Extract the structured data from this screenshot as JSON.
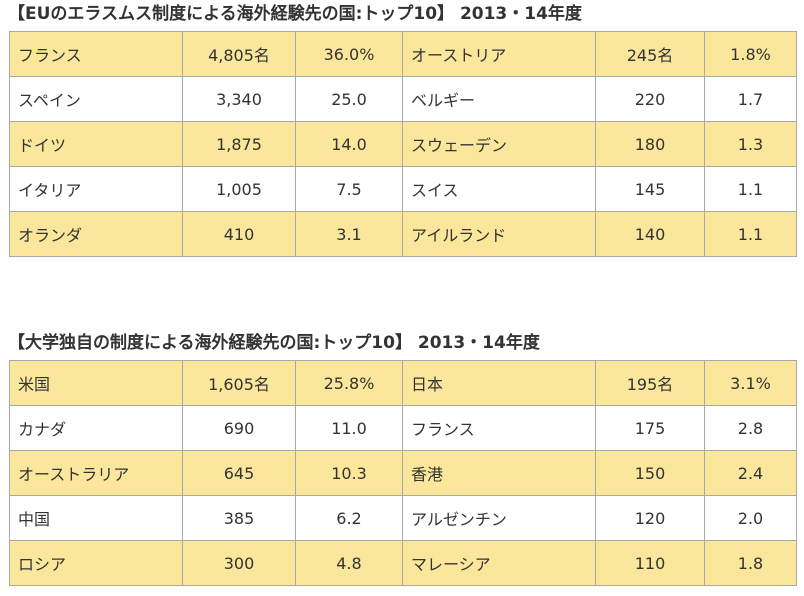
{
  "sections": [
    {
      "title": "【EUのエラスムス制度による海外経験先の国:トップ10】 2013・14年度",
      "rows": [
        {
          "left_country": "フランス",
          "left_count": "4,805名",
          "left_pct": "36.0%",
          "right_country": "オーストリア",
          "right_count": "245名",
          "right_pct": "1.8%"
        },
        {
          "left_country": "スペイン",
          "left_count": "3,340",
          "left_pct": "25.0",
          "right_country": "ベルギー",
          "right_count": "220",
          "right_pct": "1.7"
        },
        {
          "left_country": "ドイツ",
          "left_count": "1,875",
          "left_pct": "14.0",
          "right_country": "スウェーデン",
          "right_count": "180",
          "right_pct": "1.3"
        },
        {
          "left_country": "イタリア",
          "left_count": "1,005",
          "left_pct": "7.5",
          "right_country": "スイス",
          "right_count": "145",
          "right_pct": "1.1"
        },
        {
          "left_country": "オランダ",
          "left_count": "410",
          "left_pct": "3.1",
          "right_country": "アイルランド",
          "right_count": "140",
          "right_pct": "1.1"
        }
      ]
    },
    {
      "title": "【大学独自の制度による海外経験先の国:トップ10】 2013・14年度",
      "rows": [
        {
          "left_country": "米国",
          "left_count": "1,605名",
          "left_pct": "25.8%",
          "right_country": "日本",
          "right_count": "195名",
          "right_pct": "3.1%"
        },
        {
          "left_country": "カナダ",
          "left_count": "690",
          "left_pct": "11.0",
          "right_country": "フランス",
          "right_count": "175",
          "right_pct": "2.8"
        },
        {
          "left_country": "オーストラリア",
          "left_count": "645",
          "left_pct": "10.3",
          "right_country": "香港",
          "right_count": "150",
          "right_pct": "2.4"
        },
        {
          "left_country": "中国",
          "left_count": "385",
          "left_pct": "6.2",
          "right_country": "アルゼンチン",
          "right_count": "120",
          "right_pct": "2.0"
        },
        {
          "left_country": "ロシア",
          "left_count": "300",
          "left_pct": "4.8",
          "right_country": "マレーシア",
          "right_count": "110",
          "right_pct": "1.8"
        }
      ]
    }
  ],
  "colors": {
    "highlight_row": "#fbe79b",
    "plain_row": "#ffffff",
    "border": "#a8a8a8",
    "text": "#333333"
  }
}
